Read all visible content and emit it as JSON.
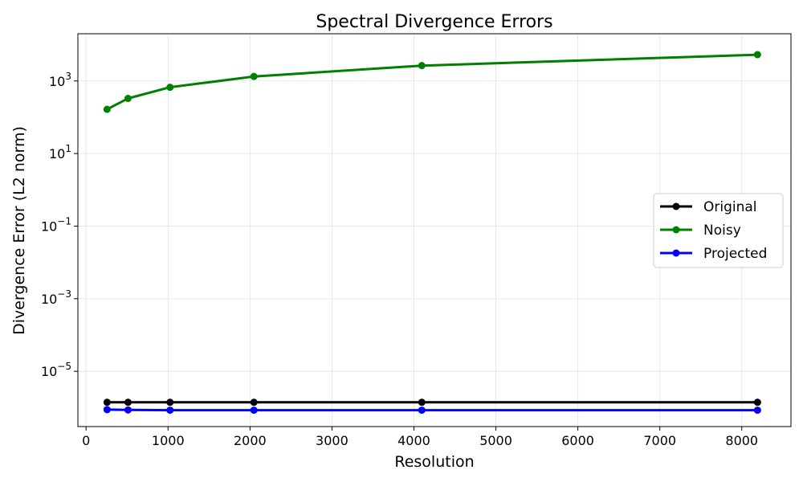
{
  "chart_data": {
    "type": "line",
    "title": "Spectral Divergence Errors",
    "xlabel": "Resolution",
    "ylabel": "Divergence Error (L2 norm)",
    "x": [
      256,
      512,
      1024,
      2048,
      4096,
      8192
    ],
    "xlim": [
      -100,
      8600
    ],
    "x_ticks": [
      0,
      1000,
      2000,
      3000,
      4000,
      5000,
      6000,
      7000,
      8000
    ],
    "y_scale": "log",
    "ylim": [
      3e-07,
      20000
    ],
    "y_ticks": [
      {
        "base": "10",
        "exp": "3",
        "value": 1000
      },
      {
        "base": "10",
        "exp": "1",
        "value": 10
      },
      {
        "base": "10",
        "exp": "−1",
        "value": 0.1
      },
      {
        "base": "10",
        "exp": "−3",
        "value": 0.001
      },
      {
        "base": "10",
        "exp": "−5",
        "value": 1e-05
      }
    ],
    "grid": true,
    "legend_position": "center-right",
    "series": [
      {
        "name": "Original",
        "color": "#000000",
        "values": [
          1.4e-06,
          1.4e-06,
          1.4e-06,
          1.4e-06,
          1.4e-06,
          1.4e-06
        ]
      },
      {
        "name": "Noisy",
        "color": "#008000",
        "values": [
          165,
          330,
          670,
          1330,
          2650,
          5300
        ]
      },
      {
        "name": "Projected",
        "color": "#0000ff",
        "values": [
          8.8e-07,
          8.6e-07,
          8.5e-07,
          8.5e-07,
          8.5e-07,
          8.5e-07
        ]
      }
    ]
  }
}
